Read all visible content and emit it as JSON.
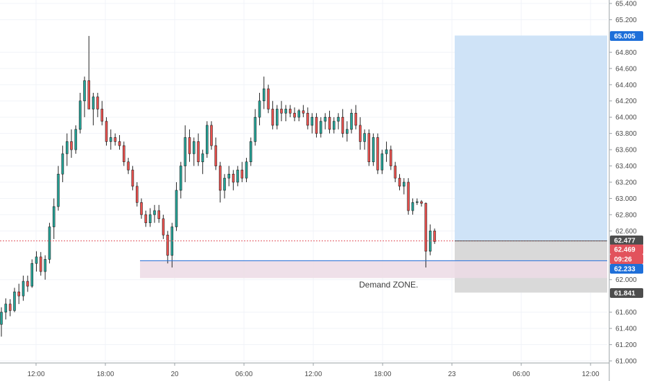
{
  "chart_data": {
    "type": "candlestick",
    "y_axis": {
      "ticks": [
        "65.400",
        "65.200",
        "64.800",
        "64.600",
        "64.400",
        "64.200",
        "64.000",
        "63.800",
        "63.600",
        "63.400",
        "63.200",
        "63.000",
        "62.800",
        "62.600",
        "62.000",
        "61.600",
        "61.400",
        "61.200",
        "61.000"
      ],
      "range": [
        60.95,
        65.45
      ],
      "side": "right"
    },
    "x_axis": {
      "ticks": [
        "12:00",
        "18:00",
        "20",
        "06:00",
        "12:00",
        "18:00",
        "23",
        "06:00",
        "12:00"
      ]
    },
    "price_tags": [
      {
        "label": "65.005",
        "value": 65.005,
        "color": "#1e6fd9"
      },
      {
        "label": "62.477",
        "value": 62.477,
        "color": "#4d4d4d"
      },
      {
        "label": "62.469",
        "value": 62.469,
        "color": "#e2525c"
      },
      {
        "label": "09:26",
        "value": 62.35,
        "color": "#e2525c"
      },
      {
        "label": "62.233",
        "value": 62.233,
        "color": "#1e6fd9"
      },
      {
        "label": "61.841",
        "value": 61.841,
        "color": "#4d4d4d"
      }
    ],
    "annotations": {
      "demand_zone_label": "Demand ZONE.",
      "demand_zone_range": [
        62.02,
        62.24
      ],
      "entry": 62.477,
      "target": 65.005,
      "stop": 61.841,
      "demand_line": 62.233
    },
    "colors": {
      "up": "#26a69a",
      "down": "#ef5350",
      "wick": "#222222",
      "target_zone": "#cfe3f7",
      "stop_zone": "#d9d9d9",
      "demand_zone": "#ecdbe5",
      "current_price_line": "#e2525c",
      "demand_line": "#1e6fd9"
    },
    "candles": [
      [
        61.45,
        61.66,
        61.3,
        61.6
      ],
      [
        61.6,
        61.77,
        61.51,
        61.7
      ],
      [
        61.7,
        61.76,
        61.55,
        61.62
      ],
      [
        61.62,
        61.9,
        61.6,
        61.85
      ],
      [
        61.85,
        61.95,
        61.7,
        61.8
      ],
      [
        61.8,
        62.05,
        61.74,
        61.98
      ],
      [
        61.98,
        62.05,
        61.85,
        61.92
      ],
      [
        61.92,
        62.25,
        61.9,
        62.2
      ],
      [
        62.2,
        62.35,
        62.1,
        62.28
      ],
      [
        62.28,
        62.34,
        62.05,
        62.1
      ],
      [
        62.1,
        62.3,
        62.0,
        62.25
      ],
      [
        62.25,
        62.7,
        62.2,
        62.65
      ],
      [
        62.65,
        63.0,
        62.5,
        62.9
      ],
      [
        62.9,
        63.4,
        62.85,
        63.3
      ],
      [
        63.3,
        63.65,
        63.2,
        63.55
      ],
      [
        63.55,
        63.8,
        63.4,
        63.7
      ],
      [
        63.7,
        63.85,
        63.5,
        63.6
      ],
      [
        63.6,
        63.9,
        63.55,
        63.85
      ],
      [
        63.85,
        64.3,
        63.8,
        64.2
      ],
      [
        64.2,
        64.5,
        64.0,
        64.45
      ],
      [
        64.45,
        65.0,
        64.1,
        64.1
      ],
      [
        64.1,
        64.3,
        63.9,
        64.25
      ],
      [
        64.25,
        64.3,
        64.0,
        64.1
      ],
      [
        64.1,
        64.2,
        63.9,
        63.95
      ],
      [
        63.95,
        64.0,
        63.65,
        63.7
      ],
      [
        63.7,
        63.85,
        63.6,
        63.75
      ],
      [
        63.75,
        63.8,
        63.65,
        63.7
      ],
      [
        63.7,
        63.78,
        63.6,
        63.65
      ],
      [
        63.65,
        63.7,
        63.4,
        63.45
      ],
      [
        63.45,
        63.5,
        63.3,
        63.35
      ],
      [
        63.35,
        63.4,
        63.1,
        63.15
      ],
      [
        63.15,
        63.2,
        62.9,
        62.95
      ],
      [
        62.95,
        63.0,
        62.75,
        62.8
      ],
      [
        62.8,
        62.85,
        62.65,
        62.7
      ],
      [
        62.7,
        62.88,
        62.65,
        62.8
      ],
      [
        62.8,
        62.92,
        62.7,
        62.85
      ],
      [
        62.85,
        62.92,
        62.7,
        62.75
      ],
      [
        62.75,
        62.8,
        62.5,
        62.55
      ],
      [
        62.55,
        62.6,
        62.2,
        62.3
      ],
      [
        62.3,
        62.7,
        62.15,
        62.65
      ],
      [
        62.65,
        63.2,
        62.6,
        63.1
      ],
      [
        63.1,
        63.45,
        63.0,
        63.4
      ],
      [
        63.4,
        63.9,
        63.2,
        63.75
      ],
      [
        63.75,
        63.85,
        63.45,
        63.55
      ],
      [
        63.55,
        63.75,
        63.4,
        63.7
      ],
      [
        63.7,
        63.8,
        63.4,
        63.45
      ],
      [
        63.45,
        63.6,
        63.3,
        63.55
      ],
      [
        63.55,
        63.95,
        63.5,
        63.9
      ],
      [
        63.9,
        63.95,
        63.6,
        63.65
      ],
      [
        63.65,
        63.75,
        63.35,
        63.4
      ],
      [
        63.4,
        63.45,
        62.95,
        63.1
      ],
      [
        63.1,
        63.3,
        63.0,
        63.25
      ],
      [
        63.25,
        63.4,
        63.15,
        63.3
      ],
      [
        63.3,
        63.35,
        63.1,
        63.2
      ],
      [
        63.2,
        63.4,
        63.15,
        63.35
      ],
      [
        63.35,
        63.45,
        63.2,
        63.25
      ],
      [
        63.25,
        63.5,
        63.2,
        63.45
      ],
      [
        63.45,
        63.75,
        63.4,
        63.7
      ],
      [
        63.7,
        64.1,
        63.65,
        64.0
      ],
      [
        64.0,
        64.3,
        63.9,
        64.2
      ],
      [
        64.2,
        64.5,
        64.1,
        64.35
      ],
      [
        64.35,
        64.4,
        64.05,
        64.1
      ],
      [
        64.1,
        64.2,
        63.85,
        63.9
      ],
      [
        63.9,
        64.15,
        63.85,
        64.1
      ],
      [
        64.1,
        64.2,
        63.95,
        64.05
      ],
      [
        64.05,
        64.15,
        63.95,
        64.1
      ],
      [
        64.1,
        64.15,
        64.0,
        64.05
      ],
      [
        64.05,
        64.12,
        63.95,
        64.0
      ],
      [
        64.0,
        64.1,
        63.95,
        64.08
      ],
      [
        64.08,
        64.15,
        64.0,
        64.05
      ],
      [
        64.05,
        64.12,
        63.85,
        63.9
      ],
      [
        63.9,
        64.05,
        63.8,
        64.0
      ],
      [
        64.0,
        64.05,
        63.75,
        63.8
      ],
      [
        63.8,
        64.0,
        63.75,
        63.95
      ],
      [
        63.95,
        64.05,
        63.85,
        64.0
      ],
      [
        64.0,
        64.08,
        63.8,
        63.85
      ],
      [
        63.85,
        64.0,
        63.8,
        63.95
      ],
      [
        63.95,
        64.05,
        63.85,
        64.0
      ],
      [
        64.0,
        64.1,
        63.75,
        63.8
      ],
      [
        63.8,
        63.95,
        63.7,
        63.85
      ],
      [
        63.85,
        64.1,
        63.8,
        64.05
      ],
      [
        64.05,
        64.15,
        63.85,
        63.9
      ],
      [
        63.9,
        64.0,
        63.6,
        63.7
      ],
      [
        63.7,
        63.85,
        63.6,
        63.8
      ],
      [
        63.8,
        63.85,
        63.4,
        63.45
      ],
      [
        63.45,
        63.8,
        63.4,
        63.75
      ],
      [
        63.75,
        63.8,
        63.3,
        63.35
      ],
      [
        63.35,
        63.6,
        63.3,
        63.55
      ],
      [
        63.55,
        63.7,
        63.45,
        63.6
      ],
      [
        63.6,
        63.65,
        63.35,
        63.4
      ],
      [
        63.4,
        63.45,
        63.2,
        63.25
      ],
      [
        63.25,
        63.3,
        63.1,
        63.15
      ],
      [
        63.15,
        63.25,
        63.05,
        63.2
      ],
      [
        63.2,
        63.25,
        62.8,
        62.85
      ],
      [
        62.85,
        63.0,
        62.8,
        62.95
      ],
      [
        62.95,
        63.0,
        62.92,
        62.96
      ],
      [
        62.96,
        62.98,
        62.9,
        62.94
      ],
      [
        62.94,
        62.95,
        62.15,
        62.35
      ],
      [
        62.35,
        62.68,
        62.3,
        62.6
      ],
      [
        62.6,
        62.63,
        62.44,
        62.47
      ]
    ]
  }
}
